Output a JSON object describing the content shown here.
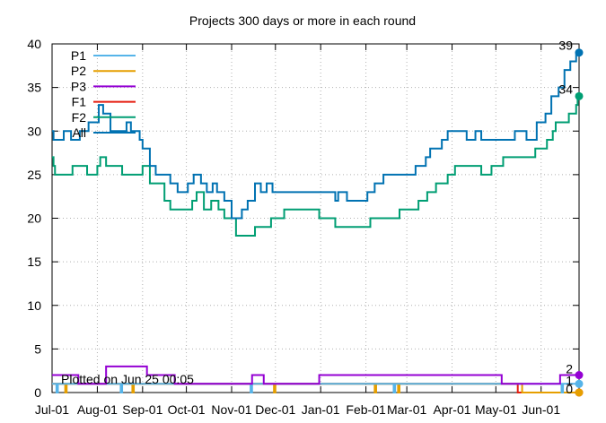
{
  "chart_data": {
    "type": "line",
    "title": "Projects 300 days or more in each round",
    "xlabel": "",
    "ylabel": "",
    "ylim": [
      0,
      40
    ],
    "yticks": [
      0,
      5,
      10,
      15,
      20,
      25,
      30,
      35,
      40
    ],
    "x_tick_labels": [
      "Jul-01",
      "Aug-01",
      "Sep-01",
      "Oct-01",
      "Nov-01",
      "Dec-01",
      "Jan-01",
      "Feb-01",
      "Mar-01",
      "Apr-01",
      "May-01",
      "Jun-01"
    ],
    "xlim": [
      "2020-07-01",
      "2021-06-27"
    ],
    "grid": true,
    "legend_position": "top-left",
    "annotation": "Plotted on Jun 25 00:05",
    "series": [
      {
        "name": "P1",
        "color": "#56b4e9",
        "end_label": "1",
        "points": [
          [
            "2020-07-01",
            1
          ],
          [
            "2020-07-04",
            0
          ],
          [
            "2020-07-05",
            1
          ],
          [
            "2020-08-17",
            0
          ],
          [
            "2020-08-18",
            1
          ],
          [
            "2020-11-14",
            0
          ],
          [
            "2020-11-15",
            1
          ],
          [
            "2021-02-20",
            0
          ],
          [
            "2021-02-21",
            1
          ],
          [
            "2021-06-15",
            0
          ],
          [
            "2021-06-16",
            1
          ],
          [
            "2021-06-27",
            1
          ]
        ]
      },
      {
        "name": "P2",
        "color": "#e69f00",
        "end_label": "",
        "points": [
          [
            "2020-07-01",
            1
          ],
          [
            "2020-07-10",
            0
          ],
          [
            "2020-07-11",
            1
          ],
          [
            "2020-08-25",
            0
          ],
          [
            "2020-08-26",
            1
          ],
          [
            "2020-11-30",
            0
          ],
          [
            "2020-12-01",
            1
          ],
          [
            "2021-02-07",
            0
          ],
          [
            "2021-02-08",
            1
          ],
          [
            "2021-02-23",
            0
          ],
          [
            "2021-02-24",
            1
          ],
          [
            "2021-05-19",
            0
          ],
          [
            "2021-06-27",
            0
          ]
        ]
      },
      {
        "name": "P3",
        "color": "#9400d3",
        "end_label": "2",
        "points": [
          [
            "2020-07-01",
            2
          ],
          [
            "2020-07-19",
            1
          ],
          [
            "2020-08-07",
            3
          ],
          [
            "2020-09-04",
            2
          ],
          [
            "2020-09-23",
            1
          ],
          [
            "2020-11-15",
            2
          ],
          [
            "2020-11-23",
            1
          ],
          [
            "2020-12-31",
            2
          ],
          [
            "2021-05-05",
            1
          ],
          [
            "2021-06-14",
            2
          ],
          [
            "2021-06-27",
            2
          ]
        ]
      },
      {
        "name": "F1",
        "color": "#e51e10",
        "end_label": "0",
        "points": [
          [
            "2020-07-01",
            1
          ],
          [
            "2021-05-16",
            0
          ],
          [
            "2021-06-27",
            0
          ]
        ]
      },
      {
        "name": "F2",
        "color": "#009e73",
        "end_label": "34",
        "points": [
          [
            "2020-07-01",
            27
          ],
          [
            "2020-07-02",
            26
          ],
          [
            "2020-07-03",
            25
          ],
          [
            "2020-07-15",
            26
          ],
          [
            "2020-07-25",
            25
          ],
          [
            "2020-08-01",
            26
          ],
          [
            "2020-08-03",
            27
          ],
          [
            "2020-08-07",
            26
          ],
          [
            "2020-08-18",
            25
          ],
          [
            "2020-09-01",
            26
          ],
          [
            "2020-09-06",
            24
          ],
          [
            "2020-09-16",
            22
          ],
          [
            "2020-09-20",
            21
          ],
          [
            "2020-10-05",
            22
          ],
          [
            "2020-10-08",
            23
          ],
          [
            "2020-10-13",
            21
          ],
          [
            "2020-10-18",
            22
          ],
          [
            "2020-10-23",
            21
          ],
          [
            "2020-10-27",
            20
          ],
          [
            "2020-11-04",
            18
          ],
          [
            "2020-11-17",
            19
          ],
          [
            "2020-11-28",
            20
          ],
          [
            "2020-12-07",
            21
          ],
          [
            "2020-12-31",
            20
          ],
          [
            "2021-01-11",
            19
          ],
          [
            "2021-02-04",
            20
          ],
          [
            "2021-02-24",
            21
          ],
          [
            "2021-03-09",
            22
          ],
          [
            "2021-03-15",
            23
          ],
          [
            "2021-03-21",
            24
          ],
          [
            "2021-03-29",
            25
          ],
          [
            "2021-04-03",
            26
          ],
          [
            "2021-04-21",
            25
          ],
          [
            "2021-04-28",
            26
          ],
          [
            "2021-05-06",
            27
          ],
          [
            "2021-05-28",
            28
          ],
          [
            "2021-06-05",
            29
          ],
          [
            "2021-06-09",
            30
          ],
          [
            "2021-06-11",
            31
          ],
          [
            "2021-06-20",
            32
          ],
          [
            "2021-06-25",
            33
          ],
          [
            "2021-06-26",
            34
          ],
          [
            "2021-06-27",
            34
          ]
        ]
      },
      {
        "name": "All",
        "color": "#0072b2",
        "end_label": "39",
        "points": [
          [
            "2020-07-01",
            30
          ],
          [
            "2020-07-02",
            29
          ],
          [
            "2020-07-09",
            30
          ],
          [
            "2020-07-14",
            29
          ],
          [
            "2020-07-20",
            30
          ],
          [
            "2020-07-26",
            31
          ],
          [
            "2020-08-02",
            33
          ],
          [
            "2020-08-05",
            32
          ],
          [
            "2020-08-10",
            30
          ],
          [
            "2020-08-21",
            31
          ],
          [
            "2020-08-24",
            30
          ],
          [
            "2020-08-30",
            29
          ],
          [
            "2020-09-01",
            28
          ],
          [
            "2020-09-06",
            26
          ],
          [
            "2020-09-10",
            25
          ],
          [
            "2020-09-20",
            24
          ],
          [
            "2020-09-25",
            23
          ],
          [
            "2020-10-02",
            24
          ],
          [
            "2020-10-06",
            25
          ],
          [
            "2020-10-11",
            24
          ],
          [
            "2020-10-15",
            23
          ],
          [
            "2020-10-19",
            24
          ],
          [
            "2020-10-22",
            23
          ],
          [
            "2020-10-27",
            22
          ],
          [
            "2020-11-01",
            20
          ],
          [
            "2020-11-08",
            21
          ],
          [
            "2020-11-12",
            22
          ],
          [
            "2020-11-17",
            24
          ],
          [
            "2020-11-21",
            23
          ],
          [
            "2020-11-25",
            24
          ],
          [
            "2020-11-29",
            23
          ],
          [
            "2021-01-11",
            22
          ],
          [
            "2021-01-13",
            23
          ],
          [
            "2021-01-19",
            22
          ],
          [
            "2021-02-02",
            23
          ],
          [
            "2021-02-07",
            24
          ],
          [
            "2021-02-13",
            25
          ],
          [
            "2021-03-07",
            26
          ],
          [
            "2021-03-14",
            27
          ],
          [
            "2021-03-17",
            28
          ],
          [
            "2021-03-25",
            29
          ],
          [
            "2021-03-29",
            30
          ],
          [
            "2021-04-11",
            29
          ],
          [
            "2021-04-17",
            30
          ],
          [
            "2021-04-21",
            29
          ],
          [
            "2021-05-14",
            30
          ],
          [
            "2021-05-22",
            29
          ],
          [
            "2021-05-29",
            31
          ],
          [
            "2021-06-04",
            32
          ],
          [
            "2021-06-08",
            34
          ],
          [
            "2021-06-13",
            35
          ],
          [
            "2021-06-17",
            37
          ],
          [
            "2021-06-21",
            38
          ],
          [
            "2021-06-25",
            39
          ],
          [
            "2021-06-27",
            39
          ]
        ]
      }
    ]
  }
}
